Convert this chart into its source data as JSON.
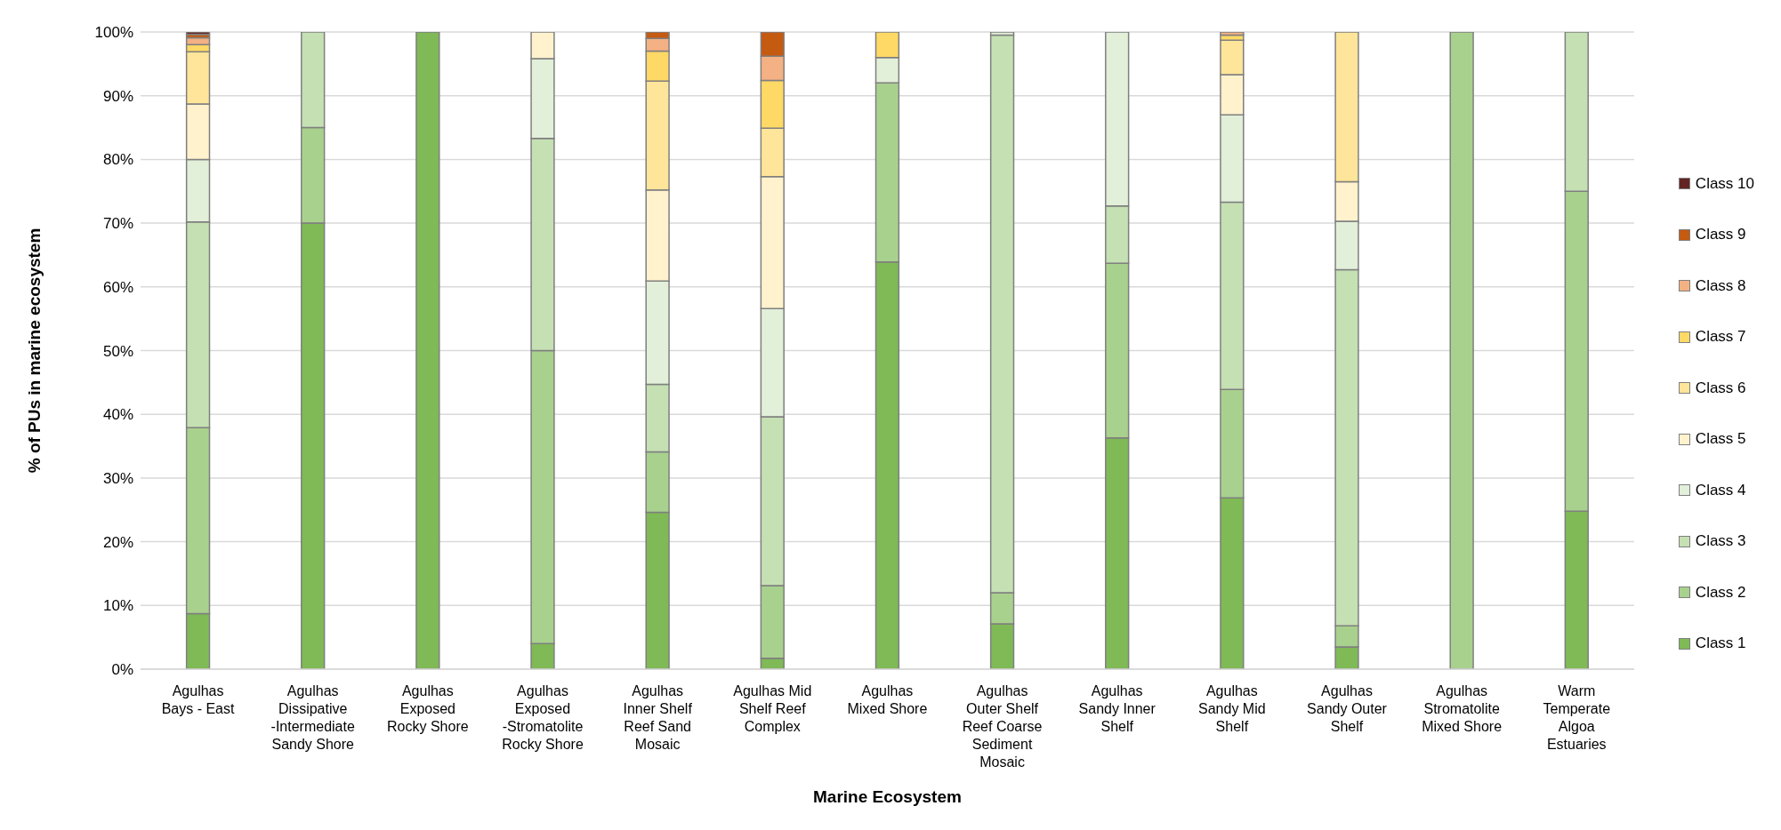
{
  "chart_data": {
    "type": "bar",
    "stacked": true,
    "xlabel": "Marine Ecosystem",
    "ylabel": "% of PUs  in marine ecosystem",
    "categories": [
      "Agulhas Bays - East",
      "Agulhas Dissipative -Intermediate Sandy Shore",
      "Agulhas Exposed Rocky Shore",
      "Agulhas Exposed -Stromatolite Rocky Shore",
      "Agulhas Inner Shelf Reef Sand Mosaic",
      "Agulhas Mid Shelf Reef Complex",
      "Agulhas Mixed Shore",
      "Agulhas Outer Shelf Reef Coarse Sediment Mosaic",
      "Agulhas Sandy Inner Shelf",
      "Agulhas Sandy Mid Shelf",
      "Agulhas Sandy Outer Shelf",
      "Agulhas Stromatolite Mixed Shore",
      "Warm Temperate Algoa Estuaries"
    ],
    "series": [
      {
        "name": "Class 1",
        "color": "#7fba56",
        "values": [
          8.7,
          70,
          100,
          4,
          24.6,
          1.7,
          63.9,
          7.1,
          36.3,
          26.9,
          3.5,
          0,
          24.8
        ]
      },
      {
        "name": "Class 2",
        "color": "#a9d18e",
        "values": [
          29.2,
          15,
          0,
          46,
          9.5,
          11.4,
          28.1,
          4.9,
          27.4,
          17.0,
          3.3,
          100,
          50.2
        ]
      },
      {
        "name": "Class 3",
        "color": "#c5e0b3",
        "values": [
          32.3,
          15,
          0,
          33.3,
          10.6,
          26.5,
          0,
          87.5,
          9.0,
          29.4,
          55.9,
          0,
          25.0
        ]
      },
      {
        "name": "Class 4",
        "color": "#e2efd9",
        "values": [
          9.8,
          0,
          0,
          12.5,
          16.2,
          17.0,
          4.0,
          0.5,
          27.3,
          13.7,
          7.6,
          0,
          0
        ]
      },
      {
        "name": "Class 5",
        "color": "#fff2cc",
        "values": [
          8.7,
          0,
          0,
          4.2,
          14.3,
          20.7,
          0,
          0,
          0,
          6.3,
          6.2,
          0,
          0
        ]
      },
      {
        "name": "Class 6",
        "color": "#ffe599",
        "values": [
          8.2,
          0,
          0,
          0,
          17.1,
          7.6,
          0,
          0,
          0,
          5.4,
          23.5,
          0,
          0
        ]
      },
      {
        "name": "Class 7",
        "color": "#ffd966",
        "values": [
          1.1,
          0,
          0,
          0,
          4.7,
          7.5,
          4.0,
          0,
          0,
          0.8,
          0,
          0,
          0
        ]
      },
      {
        "name": "Class 8",
        "color": "#f4b183",
        "values": [
          1.1,
          0,
          0,
          0,
          2.0,
          3.8,
          0,
          0,
          0,
          0.5,
          0,
          0,
          0
        ]
      },
      {
        "name": "Class 9",
        "color": "#c55a11",
        "values": [
          0.5,
          0,
          0,
          0,
          1.0,
          3.8,
          0,
          0,
          0,
          0,
          0,
          0,
          0
        ]
      },
      {
        "name": "Class 10",
        "color": "#632523",
        "values": [
          0.4,
          0,
          0,
          0,
          0,
          0,
          0,
          0,
          0,
          0,
          0,
          0,
          0
        ]
      }
    ],
    "ylim": [
      0,
      100
    ],
    "yticks": [
      {
        "value": 0,
        "label": "0%"
      },
      {
        "value": 10,
        "label": "10%"
      },
      {
        "value": 20,
        "label": "20%"
      },
      {
        "value": 30,
        "label": "30%"
      },
      {
        "value": 40,
        "label": "40%"
      },
      {
        "value": 50,
        "label": "50%"
      },
      {
        "value": 60,
        "label": "60%"
      },
      {
        "value": 70,
        "label": "70%"
      },
      {
        "value": 80,
        "label": "80%"
      },
      {
        "value": 90,
        "label": "90%"
      },
      {
        "value": 100,
        "label": "100%"
      }
    ],
    "grid": "y",
    "legend": "right"
  }
}
